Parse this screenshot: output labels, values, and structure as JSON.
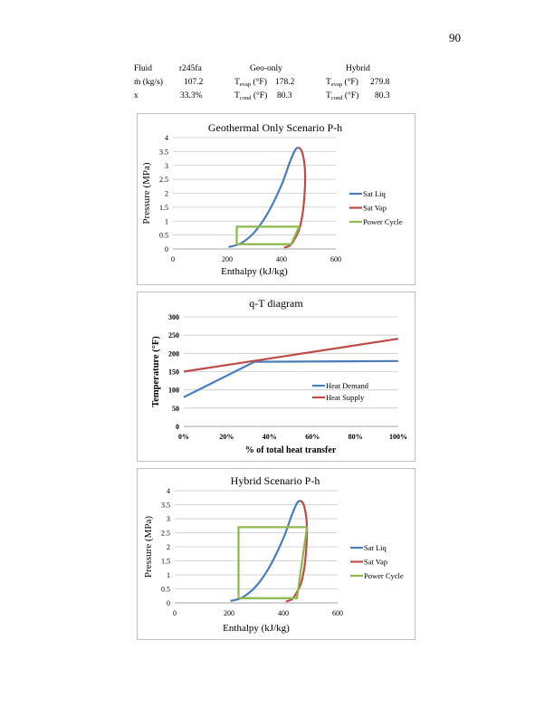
{
  "page_number": "90",
  "summary_table": {
    "fluid_label": "Fluid",
    "fluid_value": "r245fa",
    "mdot_label": "ṁ (kg/s)",
    "mdot_value": "107.2",
    "x_label": "x",
    "x_value": "33.3%",
    "geo_header": "Geo-only",
    "hybrid_header": "Hybrid",
    "t_prefix": "T",
    "evap_sub": "evap",
    "cond_sub": "cond",
    "t_unit": " (°F)",
    "geo_tevap": "178.2",
    "geo_tcond": "80.3",
    "hybrid_tevap": "279.8",
    "hybrid_tcond": "80.3"
  },
  "chart_data": [
    {
      "type": "line",
      "title": "Geothermal Only Scenario P-h",
      "xlabel": "Enthalpy (kJ/kg)",
      "ylabel": "Pressure (MPa)",
      "xlim": [
        0,
        600
      ],
      "ylim": [
        0,
        4
      ],
      "xticks": [
        "0",
        "200",
        "400",
        "600"
      ],
      "yticks": [
        "0",
        "0.5",
        "1",
        "1.5",
        "2",
        "2.5",
        "3",
        "3.5",
        "4"
      ],
      "grid": true,
      "legend": "right",
      "series": [
        {
          "name": "Sat Liq",
          "color": "#4a7ebb",
          "x": [
            205,
            250,
            300,
            350,
            400,
            430,
            450,
            462
          ],
          "y": [
            0.07,
            0.2,
            0.6,
            1.3,
            2.3,
            3.1,
            3.55,
            3.65
          ]
        },
        {
          "name": "Sat Vap",
          "color": "#be4b48",
          "x": [
            462,
            475,
            485,
            487,
            485,
            478,
            465,
            445,
            430,
            410
          ],
          "y": [
            3.65,
            3.5,
            3.0,
            2.5,
            2.0,
            1.3,
            0.7,
            0.3,
            0.12,
            0.05
          ]
        },
        {
          "name": "Power Cycle",
          "color": "#8db84a",
          "x": [
            235,
            235,
            465,
            435,
            235
          ],
          "y": [
            0.17,
            0.8,
            0.8,
            0.17,
            0.17
          ]
        }
      ]
    },
    {
      "type": "line",
      "title": "q-T diagram",
      "xlabel": "% of total heat transfer",
      "ylabel": "Temperature (°F)",
      "xlim": [
        0,
        100
      ],
      "ylim": [
        0,
        300
      ],
      "xticks": [
        "0%",
        "20%",
        "40%",
        "60%",
        "80%",
        "100%"
      ],
      "yticks": [
        "0",
        "50",
        "100",
        "150",
        "200",
        "250",
        "300"
      ],
      "grid": true,
      "legend": "inside-right",
      "series": [
        {
          "name": "Heat Demand",
          "color": "#4a7ebb",
          "x": [
            0,
            33,
            100
          ],
          "y": [
            80,
            177,
            179
          ]
        },
        {
          "name": "Heat Supply",
          "color": "#be4b48",
          "x": [
            0,
            100
          ],
          "y": [
            150,
            240
          ]
        }
      ]
    },
    {
      "type": "line",
      "title": "Hybrid Scenario P-h",
      "xlabel": "Enthalpy (kJ/kg)",
      "ylabel": "Pressure (MPa)",
      "xlim": [
        0,
        600
      ],
      "ylim": [
        0,
        4
      ],
      "xticks": [
        "0",
        "200",
        "400",
        "600"
      ],
      "yticks": [
        "0",
        "0.5",
        "1",
        "1.5",
        "2",
        "2.5",
        "3",
        "3.5",
        "4"
      ],
      "grid": true,
      "legend": "right",
      "series": [
        {
          "name": "Sat Liq",
          "color": "#4a7ebb",
          "x": [
            205,
            250,
            300,
            350,
            400,
            430,
            450,
            462
          ],
          "y": [
            0.07,
            0.2,
            0.6,
            1.3,
            2.3,
            3.1,
            3.55,
            3.65
          ]
        },
        {
          "name": "Sat Vap",
          "color": "#be4b48",
          "x": [
            462,
            475,
            485,
            487,
            485,
            478,
            465,
            445,
            430,
            410
          ],
          "y": [
            3.65,
            3.5,
            3.0,
            2.5,
            2.0,
            1.3,
            0.7,
            0.3,
            0.12,
            0.05
          ]
        },
        {
          "name": "Power Cycle",
          "color": "#8db84a",
          "x": [
            235,
            235,
            487,
            450,
            235
          ],
          "y": [
            0.17,
            2.7,
            2.7,
            0.17,
            0.17
          ]
        }
      ]
    }
  ]
}
